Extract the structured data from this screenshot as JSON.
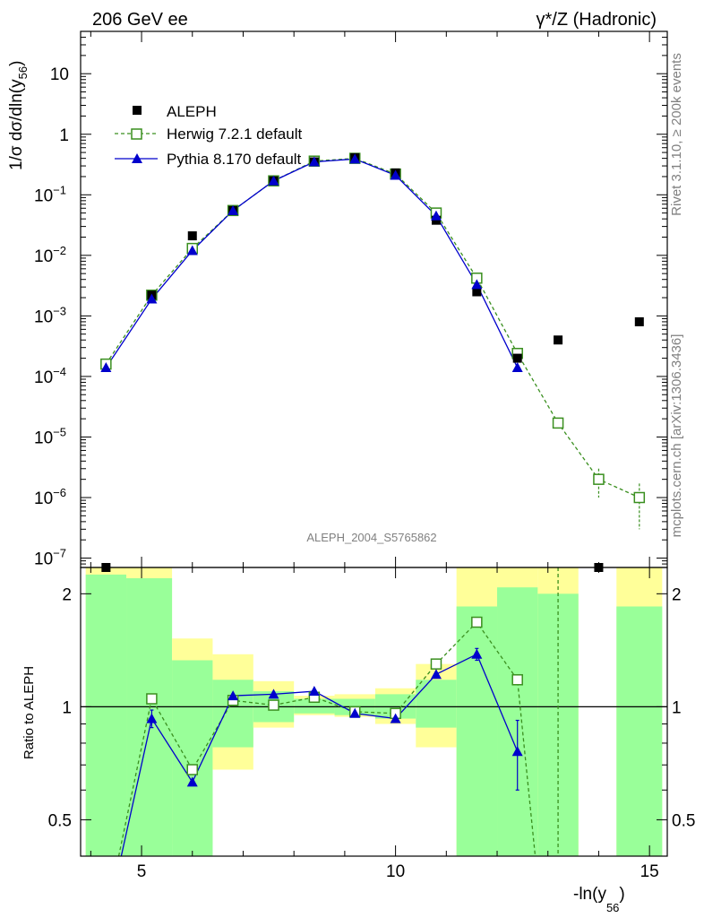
{
  "chart_data": {
    "type": "line",
    "title_left": "206 GeV ee",
    "title_right": "γ*/Z (Hadronic)",
    "watermark": "ALEPH_2004_S5765862",
    "side_label_top": "Rivet 3.1.10, ≥ 200k events",
    "side_label_bottom": "mcplots.cern.ch [arXiv:1306.3436]",
    "xlabel": "-ln(y",
    "xlabel_sub": "56",
    "xlabel_close": ")",
    "xlim": [
      3.8,
      15.35
    ],
    "xticks": [
      5,
      10,
      15
    ],
    "main": {
      "ylabel": "1/σ  dσ/dln(y",
      "ylabel_sub": "56",
      "ylabel_close": ")",
      "yscale": "log",
      "ylim": [
        7e-08,
        50
      ],
      "yticks": [
        {
          "exp": 1,
          "label": "10"
        },
        {
          "exp": 0,
          "label": "1"
        },
        {
          "exp": -1,
          "label": "10",
          "sup": "−1"
        },
        {
          "exp": -2,
          "label": "10",
          "sup": "−2"
        },
        {
          "exp": -3,
          "label": "10",
          "sup": "−3"
        },
        {
          "exp": -4,
          "label": "10",
          "sup": "−4"
        },
        {
          "exp": -5,
          "label": "10",
          "sup": "−5"
        },
        {
          "exp": -6,
          "label": "10",
          "sup": "−6"
        },
        {
          "exp": -7,
          "label": "10",
          "sup": "−7"
        }
      ],
      "series": [
        {
          "name": "ALEPH",
          "style": "data",
          "color": "#000000",
          "x": [
            4.3,
            5.2,
            6.0,
            6.8,
            7.6,
            8.4,
            9.2,
            10.0,
            10.8,
            11.6,
            12.4,
            13.2,
            14.0,
            14.8
          ],
          "y": [
            6e-08,
            0.0022,
            0.021,
            0.055,
            0.17,
            0.35,
            0.41,
            0.23,
            0.038,
            0.0025,
            0.0002,
            0.0004,
            6e-08,
            0.0008
          ]
        },
        {
          "name": "Herwig 7.2.1 default",
          "style": "herwig",
          "color": "#3a8f1f",
          "x": [
            4.3,
            5.2,
            6.0,
            6.8,
            7.6,
            8.4,
            9.2,
            10.0,
            10.8,
            11.6,
            12.4,
            13.2,
            14.0,
            14.8
          ],
          "y": [
            0.00016,
            0.0022,
            0.013,
            0.055,
            0.17,
            0.36,
            0.4,
            0.22,
            0.05,
            0.0042,
            0.00024,
            1.7e-05,
            2e-06,
            1e-06
          ],
          "err": [
            0,
            0,
            0,
            0,
            0,
            0,
            0,
            0,
            0,
            0,
            0,
            0,
            1e-06,
            7e-07
          ]
        },
        {
          "name": "Pythia 8.170 default",
          "style": "pythia",
          "color": "#0000cc",
          "x": [
            4.3,
            5.2,
            6.0,
            6.8,
            7.6,
            8.4,
            9.2,
            10.0,
            10.8,
            11.6,
            12.4
          ],
          "y": [
            0.00014,
            0.0019,
            0.012,
            0.055,
            0.17,
            0.35,
            0.39,
            0.21,
            0.045,
            0.0033,
            0.00014
          ],
          "err": [
            0,
            0,
            0,
            0,
            0,
            0,
            0,
            0,
            0,
            0,
            0
          ]
        }
      ]
    },
    "ratio": {
      "ylabel": "Ratio to ALEPH",
      "yscale": "log",
      "ylim": [
        0.4,
        2.35
      ],
      "yticks": [
        0.5,
        1,
        2
      ],
      "ytick_labels": [
        "0.5",
        "1",
        "2"
      ],
      "bands": [
        {
          "x0": 3.9,
          "x1": 4.7,
          "y_lo": 0.4,
          "y_hi": 2.35,
          "g_lo": 0.4,
          "g_hi": 2.25
        },
        {
          "x0": 4.7,
          "x1": 5.6,
          "y_lo": 0.4,
          "y_hi": 2.35,
          "g_lo": 0.4,
          "g_hi": 2.2
        },
        {
          "x0": 5.6,
          "x1": 6.4,
          "y_lo": 0.43,
          "y_hi": 1.52,
          "g_lo": 0.4,
          "g_hi": 1.33
        },
        {
          "x0": 6.4,
          "x1": 7.2,
          "y_lo": 0.68,
          "y_hi": 1.38,
          "g_lo": 0.78,
          "g_hi": 1.18
        },
        {
          "x0": 7.2,
          "x1": 8.0,
          "y_lo": 0.88,
          "y_hi": 1.17,
          "g_lo": 0.91,
          "g_hi": 1.1
        },
        {
          "x0": 8.0,
          "x1": 8.8,
          "y_lo": 0.95,
          "y_hi": 1.07,
          "g_lo": 0.96,
          "g_hi": 1.05
        },
        {
          "x0": 8.8,
          "x1": 9.6,
          "y_lo": 0.94,
          "y_hi": 1.08,
          "g_lo": 0.95,
          "g_hi": 1.05
        },
        {
          "x0": 9.6,
          "x1": 10.4,
          "y_lo": 0.9,
          "y_hi": 1.12,
          "g_lo": 0.93,
          "g_hi": 1.08
        },
        {
          "x0": 10.4,
          "x1": 11.2,
          "y_lo": 0.78,
          "y_hi": 1.3,
          "g_lo": 0.88,
          "g_hi": 1.18
        },
        {
          "x0": 11.2,
          "x1": 12.0,
          "y_lo": 0.4,
          "y_hi": 2.35,
          "g_lo": 0.4,
          "g_hi": 1.85
        },
        {
          "x0": 12.0,
          "x1": 12.8,
          "y_lo": 0.4,
          "y_hi": 2.35,
          "g_lo": 0.4,
          "g_hi": 2.08
        },
        {
          "x0": 12.8,
          "x1": 13.6,
          "y_lo": 0.4,
          "y_hi": 2.35,
          "g_lo": 0.4,
          "g_hi": 2.0
        },
        {
          "x0": 14.35,
          "x1": 15.25,
          "y_lo": 0.4,
          "y_hi": 2.35,
          "g_lo": 0.4,
          "g_hi": 1.85
        }
      ],
      "herwig": {
        "x": [
          5.2,
          6.0,
          6.8,
          7.6,
          8.4,
          9.2,
          10.0,
          10.8,
          11.6,
          12.4
        ],
        "y": [
          1.05,
          0.68,
          1.04,
          1.01,
          1.06,
          0.97,
          0.96,
          1.3,
          1.68,
          1.18
        ]
      },
      "pythia": {
        "x": [
          5.2,
          6.0,
          6.8,
          7.6,
          8.4,
          9.2,
          10.0,
          10.8,
          11.6,
          12.4
        ],
        "y": [
          0.93,
          0.63,
          1.07,
          1.08,
          1.1,
          0.96,
          0.93,
          1.22,
          1.38,
          0.76
        ],
        "err": [
          0.05,
          0,
          0,
          0,
          0,
          0,
          0,
          0,
          0.05,
          0.16
        ]
      }
    },
    "colors": {
      "yellow": "#ffff99",
      "green": "#99ff99",
      "herwig": "#3a8f1f",
      "pythia": "#0000cc",
      "data": "#000000"
    }
  }
}
